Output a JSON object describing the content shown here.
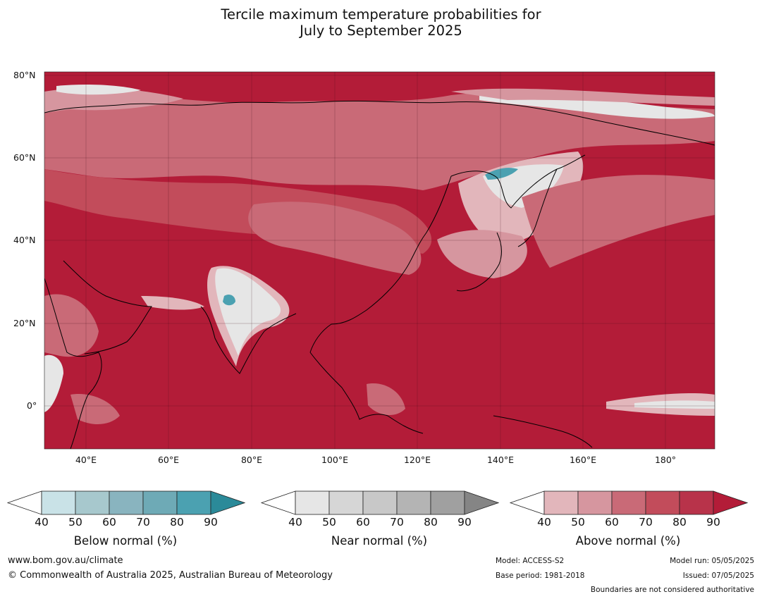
{
  "title": {
    "line1": "Tercile maximum temperature probabilities for",
    "line2": "July to September 2025"
  },
  "map": {
    "lat_labels": [
      "80°N",
      "60°N",
      "40°N",
      "20°N",
      "0°"
    ],
    "lon_labels": [
      "40°E",
      "60°E",
      "80°E",
      "100°E",
      "120°E",
      "140°E",
      "160°E",
      "180°"
    ],
    "colors": {
      "ocean_base": "#b31c38",
      "above_70": "#c24c5b",
      "above_60": "#c96a77",
      "above_50": "#d6969f",
      "above_40": "#e2b6bb",
      "near_normal": "#e6e6e6",
      "below_normal": "#4ba1b1",
      "coastline": "#000000",
      "borders": "#808080"
    }
  },
  "legends": [
    {
      "name": "Below normal (%)",
      "ticks": [
        "40",
        "50",
        "60",
        "70",
        "80",
        "90"
      ],
      "colors": [
        "#c9e2e7",
        "#a7c8cd",
        "#89b4bf",
        "#6eaab6",
        "#4ba1b1",
        "#2b8a99"
      ]
    },
    {
      "name": "Near normal (%)",
      "ticks": [
        "40",
        "50",
        "60",
        "70",
        "80",
        "90"
      ],
      "colors": [
        "#e6e6e6",
        "#d6d6d6",
        "#c8c8c8",
        "#b4b4b4",
        "#a0a0a0",
        "#858585"
      ]
    },
    {
      "name": "Above normal (%)",
      "ticks": [
        "40",
        "50",
        "60",
        "70",
        "80",
        "90"
      ],
      "colors": [
        "#e2b6bb",
        "#d6969f",
        "#c96a77",
        "#c24c5b",
        "#b8334a",
        "#b31c38"
      ]
    }
  ],
  "footer": {
    "website": "www.bom.gov.au/climate",
    "copyright": "© Commonwealth of Australia 2025, Australian Bureau of Meteorology",
    "model": "Model: ACCESS-S2",
    "base_period": "Base period: 1981-2018",
    "model_run": "Model run: 05/05/2025",
    "issued": "Issued: 07/05/2025",
    "disclaimer": "Boundaries are not considered authoritative"
  }
}
